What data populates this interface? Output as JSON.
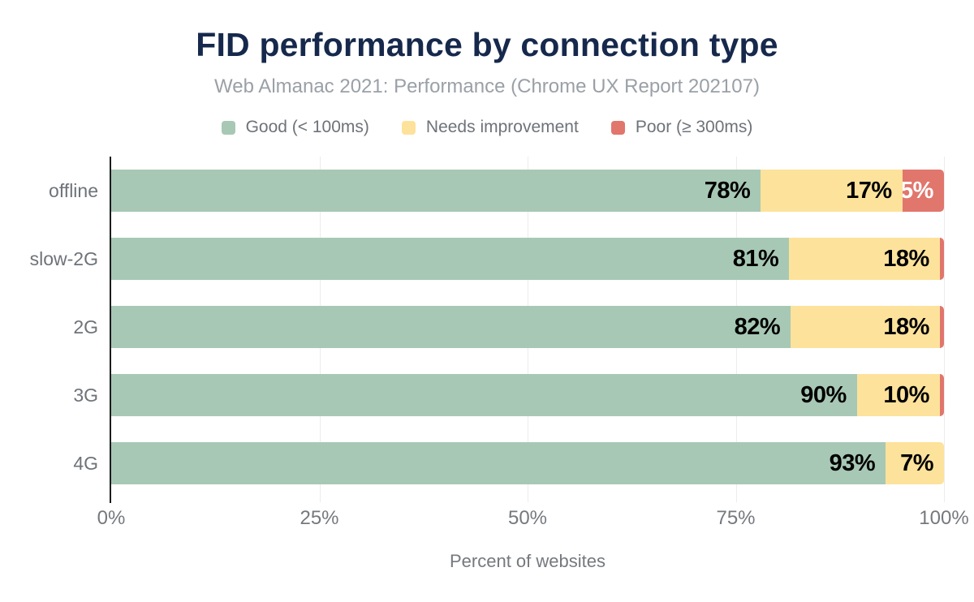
{
  "chart_data": {
    "type": "bar",
    "variant": "horizontal-stacked",
    "title": "FID performance by connection type",
    "subtitle": "Web Almanac 2021: Performance (Chrome UX Report 202107)",
    "xlabel": "Percent of websites",
    "categories": [
      "offline",
      "slow-2G",
      "2G",
      "3G",
      "4G"
    ],
    "series": [
      {
        "name": "Good (< 100ms)",
        "color": "#a7c8b5",
        "label_color": "#000000",
        "values": [
          78,
          81,
          82,
          90,
          93
        ],
        "labels": [
          "78%",
          "81%",
          "82%",
          "90%",
          "93%"
        ]
      },
      {
        "name": "Needs improvement",
        "color": "#fde29b",
        "label_color": "#000000",
        "values": [
          17,
          18,
          18,
          10,
          7
        ],
        "labels": [
          "17%",
          "18%",
          "18%",
          "10%",
          "7%"
        ]
      },
      {
        "name": "Poor (≥ 300ms)",
        "color": "#e1766d",
        "label_color": "#ffffff",
        "values": [
          5,
          0.5,
          0.5,
          0.5,
          0
        ],
        "labels": [
          "5%",
          "",
          "",
          "",
          ""
        ]
      }
    ],
    "xticks": [
      {
        "label": "0%",
        "value": 0
      },
      {
        "label": "25%",
        "value": 25
      },
      {
        "label": "50%",
        "value": 50
      },
      {
        "label": "75%",
        "value": 75
      },
      {
        "label": "100%",
        "value": 100
      }
    ],
    "xlim": [
      0,
      100
    ],
    "grid": true,
    "legend_position": "top"
  },
  "colors": {
    "title": "#16294c",
    "subtitle": "#9aa0a7",
    "axis_text": "#75797e",
    "axis_line": "#1c1c1c",
    "grid": "#ececec",
    "background": "#ffffff"
  }
}
